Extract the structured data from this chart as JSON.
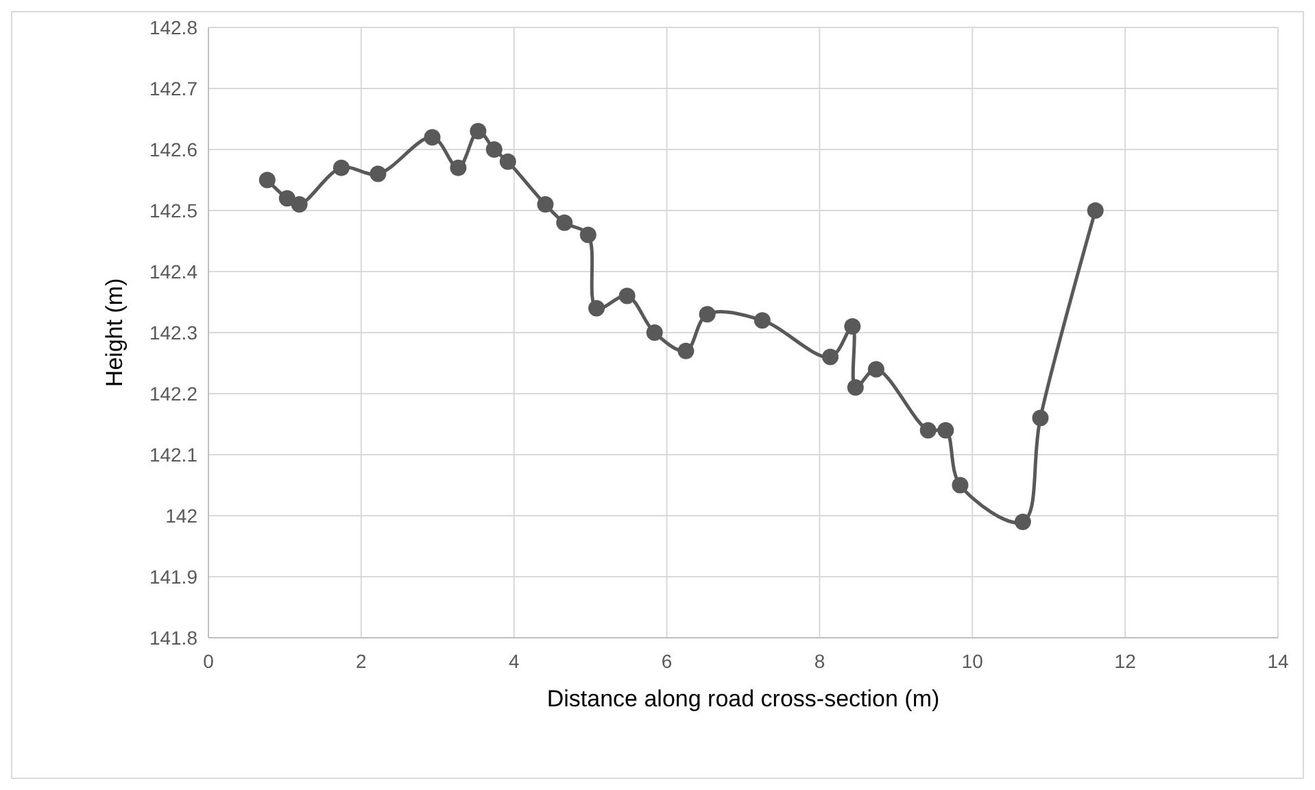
{
  "chart_data": {
    "type": "line",
    "xlabel": "Distance along road cross-section (m)",
    "ylabel": "Height (m)",
    "xlim": [
      0,
      14
    ],
    "xticks": [
      0,
      2,
      4,
      6,
      8,
      10,
      12,
      14
    ],
    "ylim": [
      141.8,
      142.8
    ],
    "yticks": [
      141.8,
      141.9,
      142,
      142.1,
      142.2,
      142.3,
      142.4,
      142.5,
      142.6,
      142.7,
      142.8
    ],
    "grid": true,
    "marker": "circle",
    "line_style": "solid",
    "series": [
      {
        "color": "#595959",
        "x": [
          0.77,
          1.03,
          1.19,
          1.74,
          2.22,
          2.93,
          3.27,
          3.53,
          3.74,
          3.92,
          4.41,
          4.66,
          4.97,
          5.08,
          5.48,
          5.84,
          6.25,
          6.53,
          7.25,
          8.14,
          8.43,
          8.47,
          8.74,
          9.42,
          9.65,
          9.84,
          10.66,
          10.89,
          11.61
        ],
        "values": [
          142.55,
          142.52,
          142.51,
          142.57,
          142.56,
          142.62,
          142.57,
          142.63,
          142.6,
          142.58,
          142.51,
          142.48,
          142.46,
          142.34,
          142.36,
          142.3,
          142.27,
          142.33,
          142.32,
          142.26,
          142.31,
          142.21,
          142.24,
          142.14,
          142.14,
          142.05,
          141.99,
          142.16,
          142.5
        ]
      }
    ]
  }
}
